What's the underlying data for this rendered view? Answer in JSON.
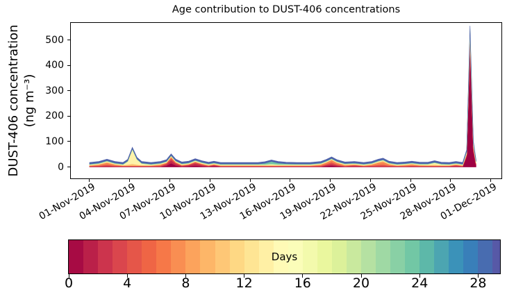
{
  "chart_data": {
    "type": "stacked_area",
    "title": "Age contribution to DUST-406 concentrations",
    "ylabel_line1": "DUST-406 concentration",
    "ylabel_line2": "(ng m⁻³)",
    "x_unit": "days since 01-Nov-2019 00:00",
    "xlim_days": [
      -1.4,
      30.8
    ],
    "ylim": [
      -45,
      567
    ],
    "yticks": [
      0,
      100,
      200,
      300,
      400,
      500
    ],
    "grid": false,
    "legend": "none (colorbar encodes age in days)",
    "xticks": [
      {
        "day": 0,
        "label": "01-Nov-2019"
      },
      {
        "day": 3,
        "label": "04-Nov-2019"
      },
      {
        "day": 6,
        "label": "07-Nov-2019"
      },
      {
        "day": 9,
        "label": "10-Nov-2019"
      },
      {
        "day": 12,
        "label": "13-Nov-2019"
      },
      {
        "day": 15,
        "label": "16-Nov-2019"
      },
      {
        "day": 18,
        "label": "19-Nov-2019"
      },
      {
        "day": 21,
        "label": "22-Nov-2019"
      },
      {
        "day": 24,
        "label": "25-Nov-2019"
      },
      {
        "day": 27,
        "label": "28-Nov-2019"
      },
      {
        "day": 30,
        "label": "01-Dec-2019"
      }
    ],
    "x": [
      0,
      0.7,
      1.3,
      1.9,
      2.5,
      2.85,
      3.2,
      3.55,
      3.9,
      4.6,
      5.3,
      5.75,
      6.1,
      6.45,
      6.9,
      7.4,
      7.9,
      8.4,
      8.9,
      9.3,
      9.8,
      10.6,
      11.6,
      12.6,
      13.1,
      13.6,
      14.1,
      14.7,
      15.5,
      16.5,
      17.3,
      17.7,
      18.1,
      18.5,
      19.1,
      19.8,
      20.5,
      21.1,
      21.6,
      21.95,
      22.4,
      23.0,
      23.6,
      24.1,
      24.7,
      25.3,
      25.8,
      26.3,
      26.9,
      27.4,
      27.9,
      28.2,
      28.45,
      28.7,
      28.9
    ],
    "series": [
      {
        "name": "age 0 days",
        "age_days": 0,
        "color": "#9e0142",
        "values": [
          0.8,
          0.8,
          0.8,
          0.8,
          0.8,
          0.8,
          0.8,
          0.8,
          0.8,
          0.8,
          0.8,
          4.8,
          14.8,
          5.8,
          0.8,
          2.8,
          5.8,
          2.8,
          0.8,
          2.8,
          0.8,
          0.8,
          0.8,
          0.8,
          0.8,
          0.8,
          0.8,
          0.8,
          0.8,
          0.8,
          0.8,
          3.8,
          5.8,
          2.8,
          0.8,
          0.8,
          0.8,
          0.8,
          0.8,
          0.8,
          0.8,
          0.8,
          0.8,
          0.8,
          0.8,
          0.8,
          0.8,
          0.8,
          0.8,
          0.8,
          0.8,
          40.8,
          470.8,
          60.8,
          5.8
        ]
      },
      {
        "name": "age 2 days",
        "age_days": 2,
        "color": "#c32b4b",
        "values": [
          1.2,
          1.2,
          3.2,
          1.2,
          1.2,
          1.2,
          1.2,
          1.2,
          1.2,
          1.2,
          1.2,
          5.2,
          12.2,
          6.2,
          3.2,
          4.2,
          8.2,
          4.2,
          2.2,
          4.2,
          1.2,
          1.2,
          1.2,
          1.2,
          1.2,
          1.2,
          1.2,
          1.2,
          1.2,
          1.2,
          1.2,
          3.2,
          5.2,
          3.2,
          1.2,
          3.2,
          1.2,
          1.2,
          1.2,
          1.2,
          1.2,
          1.2,
          1.2,
          1.2,
          1.2,
          1.2,
          1.2,
          1.2,
          1.2,
          3.2,
          1.2,
          6.2,
          21.2,
          11.2,
          4.2
        ]
      },
      {
        "name": "age 4 days",
        "age_days": 4,
        "color": "#e04f4b",
        "values": [
          1.5,
          3.5,
          5.5,
          3.5,
          1.5,
          1.5,
          1.5,
          1.5,
          1.5,
          1.5,
          3.5,
          4.5,
          7.5,
          4.5,
          1.5,
          1.5,
          4.5,
          3.5,
          1.5,
          1.5,
          1.5,
          1.5,
          1.5,
          1.5,
          1.5,
          1.5,
          1.5,
          1.5,
          1.5,
          1.5,
          3.5,
          4.5,
          7.5,
          4.5,
          1.5,
          3.5,
          1.5,
          3.5,
          6.5,
          7.5,
          3.5,
          1.5,
          1.5,
          3.5,
          1.5,
          1.5,
          1.5,
          1.5,
          1.5,
          3.5,
          1.5,
          1.5,
          9.5,
          5.5,
          1.5
        ]
      },
      {
        "name": "age 7 days",
        "age_days": 7,
        "color": "#f78550",
        "values": [
          2,
          4,
          7,
          4,
          2,
          2,
          2,
          2,
          2,
          2,
          4,
          2,
          5,
          2,
          2,
          2,
          2,
          2,
          2,
          2,
          2,
          2,
          2,
          2,
          2,
          2,
          2,
          2,
          2,
          2,
          4,
          6,
          9,
          6,
          4,
          2,
          2,
          4,
          8,
          10,
          5,
          2,
          4,
          5,
          3,
          2,
          2,
          2,
          2,
          2,
          2,
          2,
          7,
          2,
          2
        ]
      },
      {
        "name": "age 10 days",
        "age_days": 10,
        "color": "#fdc271",
        "values": [
          1.5,
          1.5,
          3.5,
          1.5,
          1.5,
          3.5,
          6.5,
          3.5,
          1.5,
          1.5,
          1.5,
          1.5,
          1.5,
          1.5,
          1.5,
          1.5,
          1.5,
          1.5,
          1.5,
          1.5,
          1.5,
          1.5,
          1.5,
          1.5,
          1.5,
          1.5,
          1.5,
          1.5,
          1.5,
          1.5,
          1.5,
          1.5,
          1.5,
          1.5,
          1.5,
          1.5,
          1.5,
          1.5,
          3.5,
          4.5,
          1.5,
          1.5,
          1.5,
          1.5,
          1.5,
          2.5,
          3.5,
          1.5,
          1.5,
          1.5,
          1.5,
          1.5,
          5.5,
          1.5,
          1.5
        ]
      },
      {
        "name": "age 13.5 days",
        "age_days": 13.5,
        "color": "#fef2a9",
        "values": [
          1.5,
          1.5,
          1.5,
          1.5,
          1.5,
          11.5,
          53.5,
          19.5,
          5.5,
          1.5,
          1.5,
          1.5,
          1.5,
          1.5,
          1.5,
          1.5,
          1.5,
          1.5,
          1.5,
          1.5,
          1.5,
          1.5,
          1.5,
          1.5,
          1.5,
          1.5,
          1.5,
          1.5,
          1.5,
          1.5,
          1.5,
          1.5,
          1.5,
          1.5,
          1.5,
          1.5,
          1.5,
          1.5,
          1.5,
          1.5,
          1.5,
          1.5,
          1.5,
          1.5,
          1.5,
          1.5,
          5.5,
          2.5,
          1.5,
          1.5,
          1.5,
          6.5,
          19.5,
          11.5,
          4.5
        ]
      },
      {
        "name": "age 17 days",
        "age_days": 17,
        "color": "#ecf7a1",
        "values": [
          1.2,
          1.2,
          1.2,
          1.2,
          1.2,
          1.2,
          4.2,
          1.2,
          1.2,
          1.2,
          1.2,
          1.2,
          1.2,
          1.2,
          1.2,
          1.2,
          1.2,
          1.2,
          1.2,
          1.2,
          1.2,
          1.2,
          1.2,
          1.2,
          1.2,
          3.2,
          1.2,
          1.2,
          1.2,
          1.2,
          1.2,
          1.2,
          1.2,
          1.2,
          1.2,
          1.2,
          1.2,
          1.2,
          1.2,
          1.2,
          1.2,
          1.2,
          1.2,
          1.2,
          1.2,
          1.2,
          2.2,
          1.2,
          1.2,
          1.2,
          1.2,
          1.2,
          5.2,
          1.2,
          1.2
        ]
      },
      {
        "name": "age 23 days",
        "age_days": 23,
        "color": "#74c7a5",
        "values": [
          2,
          2,
          2,
          2,
          2,
          2,
          2,
          2,
          2,
          2,
          2,
          2,
          2,
          2,
          2,
          2,
          2,
          2,
          2,
          2,
          2,
          2,
          2,
          2,
          5,
          10,
          6,
          3,
          2,
          2,
          2,
          2,
          2,
          2,
          2,
          2,
          2,
          2,
          2,
          2,
          2,
          2,
          2,
          2,
          2,
          2,
          2,
          2,
          2,
          2,
          2,
          2,
          5,
          2,
          2
        ]
      },
      {
        "name": "age 28.5 days",
        "age_days": 28.5,
        "color": "#4f62ab",
        "values": [
          6,
          6,
          6,
          6,
          6,
          6,
          6,
          6,
          6,
          6,
          6,
          6,
          6,
          6,
          6,
          6,
          6,
          6,
          6,
          6,
          6,
          6,
          6,
          6,
          6,
          6,
          6,
          6,
          6,
          6,
          6,
          6,
          6,
          6,
          6,
          6,
          6,
          6,
          6,
          6,
          6,
          6,
          6,
          6,
          6,
          6,
          6,
          6,
          6,
          6,
          6,
          6,
          12,
          6,
          6
        ]
      }
    ],
    "colorbar": {
      "label": "Days",
      "vmin": 0,
      "vmax": 29.5,
      "n_cells": 30,
      "ticks": [
        0,
        4,
        8,
        12,
        16,
        20,
        24,
        28
      ],
      "cmap": "Spectral (discrete)",
      "cmap_anchors": [
        "#9e0142",
        "#d53e4f",
        "#f46d43",
        "#fdae61",
        "#fee08b",
        "#ffffbf",
        "#e6f598",
        "#abdda4",
        "#66c2a5",
        "#3288bd",
        "#5e4fa2"
      ]
    }
  }
}
